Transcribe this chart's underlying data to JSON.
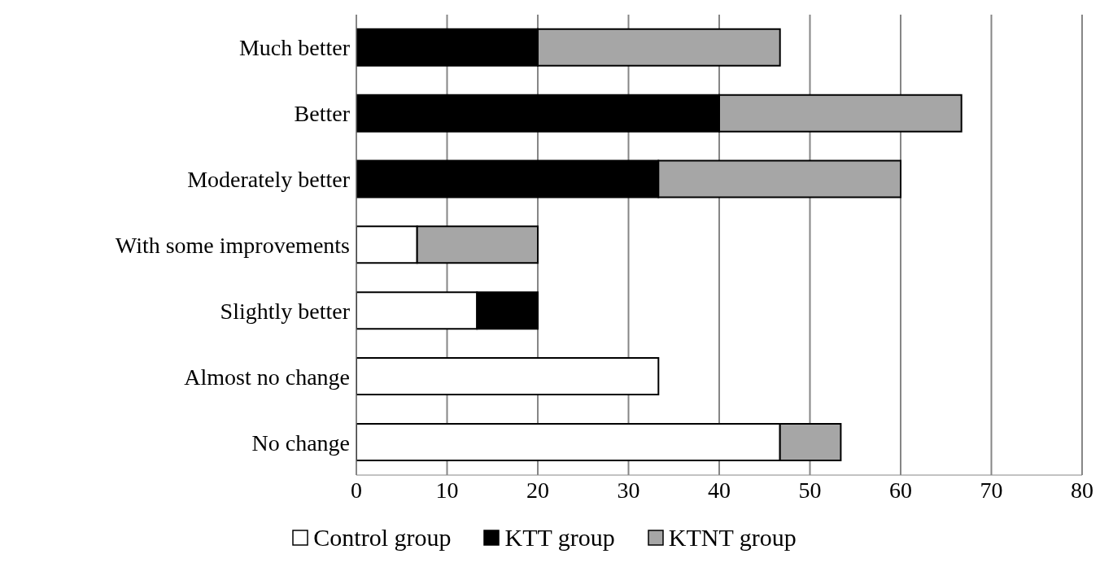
{
  "chart_data": {
    "type": "bar",
    "orientation": "horizontal",
    "stacked": true,
    "categories": [
      "Much better",
      "Better",
      "Moderately better",
      "With some improvements",
      "Slightly better",
      "Almost no change",
      "No change"
    ],
    "series": [
      {
        "name": "Control group",
        "color": "#ffffff",
        "values": [
          0,
          0,
          0,
          6.7,
          13.3,
          33.3,
          46.7
        ]
      },
      {
        "name": "KTT group",
        "color": "#000000",
        "values": [
          20,
          40,
          33.3,
          0,
          6.7,
          0,
          0
        ]
      },
      {
        "name": "KTNT group",
        "color": "#a6a6a6",
        "values": [
          26.7,
          26.7,
          26.7,
          13.3,
          0,
          0,
          6.7
        ]
      }
    ],
    "xlim": [
      0,
      80
    ],
    "xticks": [
      0,
      10,
      20,
      30,
      40,
      50,
      60,
      70,
      80
    ],
    "grid": "x",
    "legend": "bottom"
  }
}
